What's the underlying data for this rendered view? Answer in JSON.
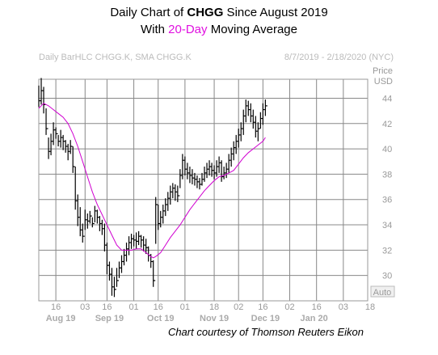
{
  "header": {
    "title_prefix": "Daily Chart of ",
    "title_ticker": "CHGG",
    "title_suffix": " Since August 2019",
    "subtitle_prefix": "With ",
    "subtitle_highlight": "20-Day",
    "subtitle_suffix": " Moving Average",
    "highlight_color": "#e010e0"
  },
  "chart_data": {
    "type": "ohlc_bar_with_line",
    "study_label": "Daily BarHLC CHGG.K, SMA CHGG.K",
    "date_range": "8/7/2019 - 2/18/2020 (NYC)",
    "ylabel": "Price",
    "yunit": "USD",
    "ylim": [
      28,
      45.5
    ],
    "yticks": [
      30,
      32,
      34,
      36,
      38,
      40,
      42,
      44
    ],
    "xlim": [
      0,
      135
    ],
    "x_ticks": [
      {
        "label": "16",
        "x": 7
      },
      {
        "label": "03",
        "x": 19
      },
      {
        "label": "16",
        "x": 28
      },
      {
        "label": "01",
        "x": 39
      },
      {
        "label": "16",
        "x": 49
      },
      {
        "label": "01",
        "x": 60
      },
      {
        "label": "18",
        "x": 72
      },
      {
        "label": "02",
        "x": 82
      },
      {
        "label": "16",
        "x": 92
      },
      {
        "label": "02",
        "x": 103
      },
      {
        "label": "16",
        "x": 114
      },
      {
        "label": "03",
        "x": 125
      },
      {
        "label": "18",
        "x": 136
      }
    ],
    "month_labels": [
      {
        "label": "Aug 19",
        "x": 9
      },
      {
        "label": "Sep 19",
        "x": 29
      },
      {
        "label": "Oct 19",
        "x": 50
      },
      {
        "label": "Nov 19",
        "x": 72
      },
      {
        "label": "Dec 19",
        "x": 93
      },
      {
        "label": "Jan 20",
        "x": 113
      }
    ],
    "grid": true,
    "auto_label": "Auto",
    "series": [
      {
        "name": "CHGG.K",
        "style": "hlc_bars",
        "color": "#000000",
        "bars": [
          [
            0,
            45,
            43.3,
            43.8
          ],
          [
            1,
            45.6,
            43.5,
            44.6
          ],
          [
            2,
            44.9,
            42.8,
            43.5
          ],
          [
            3,
            43.2,
            41.1,
            41.6
          ],
          [
            4,
            40.9,
            39.2,
            39.8
          ],
          [
            5,
            41.2,
            39.5,
            40.6
          ],
          [
            6,
            42.1,
            40.3,
            41.5
          ],
          [
            7,
            41.7,
            40.8,
            41.2
          ],
          [
            8,
            41.1,
            40.2,
            40.6
          ],
          [
            9,
            41.5,
            40.1,
            40.9
          ],
          [
            10,
            41.1,
            39.9,
            40.6
          ],
          [
            11,
            40.7,
            39.7,
            40.2
          ],
          [
            12,
            40.4,
            39.1,
            39.8
          ],
          [
            13,
            40.7,
            39.6,
            40.2
          ],
          [
            14,
            40.2,
            38.1,
            38.6
          ],
          [
            15,
            38.6,
            35.2,
            35.9
          ],
          [
            16,
            36.4,
            33.9,
            34.6
          ],
          [
            17,
            35.4,
            33.1,
            33.6
          ],
          [
            18,
            34.1,
            32.6,
            33.1
          ],
          [
            19,
            35.2,
            33.6,
            34.4
          ],
          [
            20,
            34.9,
            33.7,
            34.3
          ],
          [
            21,
            35.1,
            34.1,
            34.7
          ],
          [
            22,
            34.6,
            33.8,
            34.1
          ],
          [
            23,
            35.5,
            34.2,
            35.1
          ],
          [
            24,
            35.2,
            34.1,
            34.6
          ],
          [
            25,
            34.7,
            33.5,
            34.1
          ],
          [
            26,
            34.4,
            33.2,
            33.7
          ],
          [
            27,
            34.1,
            31.9,
            32.4
          ],
          [
            28,
            32.6,
            30.1,
            30.8
          ],
          [
            29,
            31.1,
            29.6,
            30.1
          ],
          [
            30,
            30.6,
            28.4,
            29.1
          ],
          [
            31,
            29.9,
            28.3,
            28.9
          ],
          [
            32,
            30.6,
            29.1,
            29.6
          ],
          [
            33,
            31.1,
            29.8,
            30.6
          ],
          [
            34,
            31.6,
            30.2,
            31.1
          ],
          [
            35,
            32.1,
            30.8,
            31.6
          ],
          [
            36,
            32.6,
            31.1,
            32.1
          ],
          [
            37,
            33.1,
            31.6,
            32.6
          ],
          [
            38,
            33.3,
            32.1,
            32.9
          ],
          [
            39,
            33.2,
            32.3,
            32.8
          ],
          [
            40,
            33.4,
            32.1,
            32.7
          ],
          [
            41,
            33.5,
            32.4,
            33.1
          ],
          [
            42,
            33.2,
            32.2,
            32.8
          ],
          [
            43,
            33.1,
            31.9,
            32.4
          ],
          [
            44,
            32.9,
            31.7,
            32.2
          ],
          [
            45,
            32.3,
            31.1,
            31.6
          ],
          [
            46,
            31.7,
            30.6,
            31.1
          ],
          [
            47,
            31.2,
            29.1,
            29.6
          ],
          [
            48,
            36.2,
            32.5,
            35.6
          ],
          [
            49,
            35.6,
            33.6,
            34.1
          ],
          [
            50,
            35.1,
            33.8,
            34.6
          ],
          [
            51,
            35.6,
            34.1,
            35.1
          ],
          [
            52,
            36.1,
            34.7,
            35.6
          ],
          [
            53,
            36.6,
            35.1,
            36.1
          ],
          [
            54,
            37.1,
            35.6,
            36.6
          ],
          [
            55,
            37.3,
            36.1,
            36.9
          ],
          [
            56,
            37.2,
            35.9,
            36.6
          ],
          [
            57,
            37.1,
            35.8,
            36.3
          ],
          [
            58,
            38.4,
            36.9,
            37.9
          ],
          [
            59,
            39.6,
            37.6,
            39.1
          ],
          [
            60,
            39.4,
            37.9,
            38.4
          ],
          [
            61,
            38.9,
            37.6,
            38.1
          ],
          [
            62,
            38.6,
            37.3,
            37.9
          ],
          [
            63,
            38.4,
            37.2,
            37.7
          ],
          [
            64,
            38.1,
            37.1,
            37.6
          ],
          [
            65,
            37.9,
            36.9,
            37.4
          ],
          [
            66,
            37.7,
            36.8,
            37.2
          ],
          [
            67,
            38.1,
            37.1,
            37.6
          ],
          [
            68,
            38.6,
            37.4,
            38.1
          ],
          [
            69,
            38.9,
            37.7,
            38.4
          ],
          [
            70,
            39.1,
            37.9,
            38.6
          ],
          [
            71,
            38.9,
            37.8,
            38.3
          ],
          [
            72,
            38.7,
            37.6,
            38.1
          ],
          [
            73,
            39.1,
            37.8,
            38.6
          ],
          [
            74,
            39.4,
            38.1,
            38.9
          ],
          [
            75,
            39.1,
            37.4,
            37.8
          ],
          [
            76,
            38.6,
            37.6,
            38.1
          ],
          [
            77,
            38.9,
            37.7,
            38.4
          ],
          [
            78,
            39.6,
            38.1,
            39.1
          ],
          [
            79,
            40.1,
            38.6,
            39.6
          ],
          [
            80,
            40.6,
            39.1,
            40.1
          ],
          [
            81,
            41.1,
            39.6,
            40.6
          ],
          [
            82,
            41.6,
            40.1,
            41.1
          ],
          [
            83,
            42.1,
            40.6,
            41.6
          ],
          [
            84,
            43.1,
            41.1,
            42.6
          ],
          [
            85,
            43.9,
            42.1,
            43.4
          ],
          [
            86,
            43.8,
            42.6,
            43.1
          ],
          [
            87,
            43.6,
            42.1,
            42.6
          ],
          [
            88,
            43.1,
            41.6,
            42.1
          ],
          [
            89,
            42.6,
            40.9,
            41.4
          ],
          [
            90,
            42.1,
            40.6,
            41.6
          ],
          [
            91,
            42.9,
            41.6,
            42.4
          ],
          [
            92,
            43.6,
            41.9,
            43.1
          ],
          [
            93,
            43.9,
            42.6,
            43.4
          ]
        ]
      },
      {
        "name": "SMA 20",
        "style": "line",
        "color": "#d000d0",
        "points": [
          [
            0,
            43.2
          ],
          [
            2,
            43.6
          ],
          [
            4,
            43.4
          ],
          [
            6,
            43.1
          ],
          [
            8,
            42.8
          ],
          [
            10,
            42.5
          ],
          [
            12,
            42.0
          ],
          [
            14,
            41.2
          ],
          [
            16,
            40.2
          ],
          [
            18,
            39.0
          ],
          [
            20,
            37.8
          ],
          [
            22,
            36.6
          ],
          [
            24,
            35.6
          ],
          [
            26,
            34.8
          ],
          [
            28,
            34.0
          ],
          [
            30,
            33.2
          ],
          [
            32,
            32.4
          ],
          [
            34,
            32.0
          ],
          [
            36,
            32.0
          ],
          [
            38,
            32.0
          ],
          [
            40,
            32.1
          ],
          [
            42,
            32.1
          ],
          [
            44,
            31.8
          ],
          [
            46,
            31.5
          ],
          [
            47,
            31.4
          ],
          [
            48,
            31.5
          ],
          [
            50,
            31.8
          ],
          [
            52,
            32.4
          ],
          [
            54,
            33.0
          ],
          [
            56,
            33.5
          ],
          [
            58,
            34.0
          ],
          [
            60,
            34.6
          ],
          [
            62,
            35.2
          ],
          [
            64,
            35.7
          ],
          [
            66,
            36.2
          ],
          [
            68,
            36.7
          ],
          [
            70,
            37.1
          ],
          [
            72,
            37.5
          ],
          [
            74,
            37.8
          ],
          [
            76,
            37.9
          ],
          [
            78,
            38.1
          ],
          [
            80,
            38.3
          ],
          [
            82,
            38.8
          ],
          [
            84,
            39.3
          ],
          [
            86,
            39.7
          ],
          [
            88,
            40.0
          ],
          [
            90,
            40.3
          ],
          [
            92,
            40.6
          ],
          [
            93,
            40.9
          ]
        ]
      }
    ]
  },
  "footer": {
    "credit": "Chart courtesy of Thomson Reuters Eikon"
  }
}
